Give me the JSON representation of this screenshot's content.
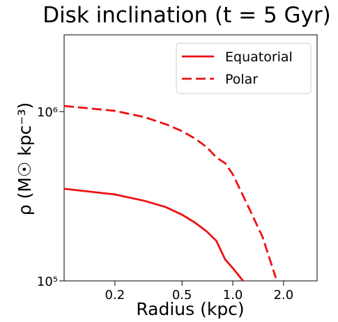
{
  "chart_data": {
    "type": "line",
    "title": "Disk inclination (t = 5 Gyr)",
    "xlabel": "Radius (kpc)",
    "ylabel": "ρ (M☉ kpc⁻³)",
    "xscale": "log",
    "yscale": "log",
    "xlim": [
      0.1,
      3.16
    ],
    "ylim": [
      100000,
      2840000
    ],
    "xticks": [
      0.2,
      0.5,
      {
        "value": 1,
        "label": "1.0"
      },
      {
        "value": 2,
        "label": "2.0"
      }
    ],
    "yticks": [
      {
        "value": 100000,
        "label": "10⁵"
      },
      {
        "value": 1000000,
        "label": "10⁶"
      }
    ],
    "legend": "upper right",
    "series": [
      {
        "name": "Equatorial",
        "color": "#ee1111",
        "style": "solid",
        "x": [
          0.1,
          0.2,
          0.3,
          0.4,
          0.5,
          0.6,
          0.7,
          0.8,
          0.9,
          1.0,
          1.15
        ],
        "values": [
          350000,
          324000,
          297000,
          273000,
          246000,
          220000,
          196000,
          172000,
          134000,
          119000,
          100000
        ]
      },
      {
        "name": "Polar",
        "color": "#ee1111",
        "style": "dashed",
        "x": [
          0.1,
          0.2,
          0.3,
          0.4,
          0.5,
          0.6,
          0.7,
          0.8,
          0.9,
          1.0,
          1.2,
          1.5,
          1.8
        ],
        "values": [
          1080000,
          1010000,
          927000,
          843000,
          767000,
          691000,
          617000,
          535000,
          496000,
          426000,
          292000,
          182000,
          104000
        ]
      }
    ]
  }
}
